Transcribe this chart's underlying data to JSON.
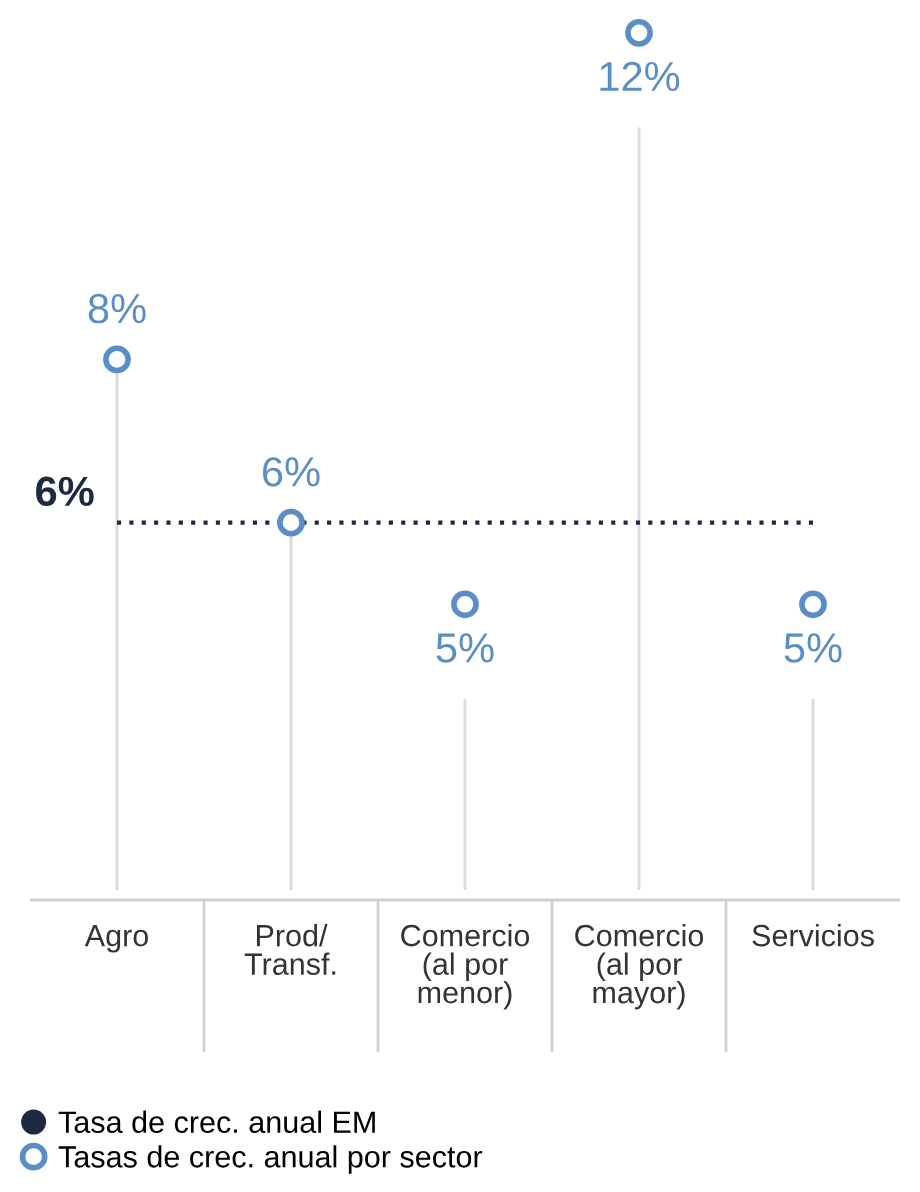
{
  "chart_data": {
    "type": "lollipop",
    "categories": [
      "Agro",
      "Prod/\nTransf.",
      "Comercio\n(al por\nmenor)",
      "Comercio\n(al por\nmayor)",
      "Servicios"
    ],
    "series": [
      {
        "name": "Tasa de crec. anual EM",
        "type": "line",
        "color": "#1e2a44",
        "values": [
          6,
          6,
          6,
          6,
          6
        ],
        "value_labels": [
          "6%",
          null,
          null,
          null,
          null
        ],
        "line_style": "dotted",
        "marker": "none"
      },
      {
        "name": "Tasas de crec. anual por sector",
        "color": "#5b8ec6",
        "values": [
          8,
          6,
          5,
          12,
          5
        ],
        "value_labels": [
          "8%",
          "6%",
          "5%",
          "12%",
          "5%"
        ],
        "marker": "circle"
      }
    ],
    "legend": "bottom"
  }
}
